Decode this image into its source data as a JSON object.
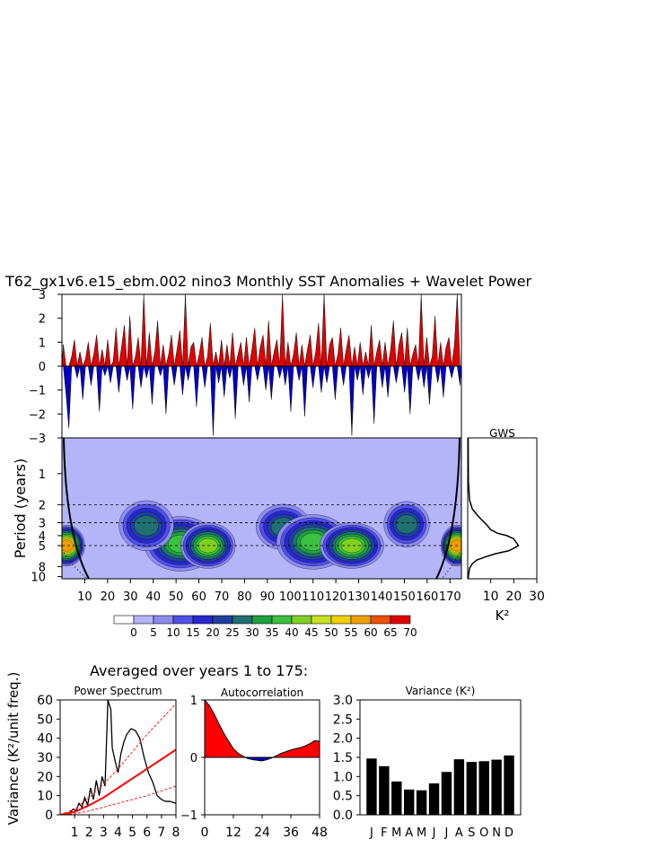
{
  "title": "T62_gx1v6.e15_ebm.002 nino3 Monthly SST Anomalies + Wavelet Power",
  "colors": {
    "positive": "#e00000",
    "negative": "#0000c8",
    "wavelet_levels": [
      "#ffffff",
      "#b4b4f8",
      "#8c8cf0",
      "#5050e6",
      "#2828d0",
      "#2040a0",
      "#207070",
      "#20a040",
      "#3cc040",
      "#80d020",
      "#c8e020",
      "#f0d000",
      "#f0a000",
      "#f05000",
      "#e00000"
    ],
    "red": "#ff0000"
  },
  "chart_data": [
    {
      "id": "timeseries",
      "type": "bar",
      "title": "",
      "xlabel": "",
      "ylabel": "",
      "ylim": [
        -3,
        3
      ],
      "yticks": [
        "3",
        "2",
        "1",
        "0",
        "−1",
        "−2",
        "−3"
      ],
      "ytick_values": [
        3,
        2,
        1,
        0,
        -1,
        -2,
        -3
      ],
      "xlim": [
        0,
        175
      ],
      "grid": false,
      "series": [
        {
          "values": [
            0.9,
            -1.2,
            -2.6,
            0.4,
            1.1,
            -0.5,
            0.6,
            -1.4,
            0.3,
            1.0,
            -0.8,
            0.5,
            1.3,
            -1.9,
            0.7,
            -0.4,
            1.1,
            -0.7,
            0.2,
            1.6,
            -1.1,
            0.8,
            1.7,
            -0.6,
            2.1,
            -1.8,
            0.4,
            1.2,
            -0.9,
            3.0,
            -0.5,
            1.4,
            -1.6,
            0.6,
            1.9,
            -0.4,
            0.9,
            -2.0,
            0.5,
            1.3,
            -0.8,
            0.7,
            1.5,
            -1.2,
            3.0,
            -0.6,
            0.8,
            1.0,
            -1.7,
            0.5,
            1.2,
            -0.9,
            0.4,
            1.8,
            -2.9,
            0.6,
            -0.7,
            1.1,
            -1.3,
            0.9,
            -0.5,
            1.4,
            -2.2,
            0.5,
            1.0,
            -0.8,
            1.2,
            -1.5,
            0.7,
            1.6,
            -0.6,
            0.8,
            1.3,
            -1.0,
            1.9,
            -1.4,
            0.6,
            1.1,
            -0.5,
            3.0,
            -0.8,
            1.0,
            -1.9,
            0.5,
            1.4,
            -0.6,
            0.9,
            -2.1,
            0.7,
            1.3,
            -0.9,
            0.6,
            1.8,
            -1.1,
            3.0,
            -0.7,
            0.9,
            1.2,
            -1.4,
            0.5,
            1.6,
            -0.8,
            0.7,
            1.3,
            -2.9,
            0.8,
            -0.6,
            1.0,
            -1.2,
            0.6,
            -0.5,
            1.7,
            -2.4,
            0.6,
            1.1,
            -0.9,
            1.0,
            -1.3,
            0.7,
            1.9,
            -0.7,
            0.9,
            1.4,
            -1.1,
            1.6,
            -2.0,
            0.5,
            0.9,
            -0.6,
            3.0,
            -0.9,
            1.2,
            -1.6,
            0.4,
            2.1,
            -0.7,
            1.0,
            -1.3,
            0.8,
            1.2,
            -0.5,
            0.9,
            3.0,
            -0.8
          ],
          "name": ""
        }
      ]
    },
    {
      "id": "wavelet",
      "type": "heatmap",
      "xlabel": "",
      "ylabel": "Period (years)",
      "xticks": [
        "10",
        "20",
        "30",
        "40",
        "50",
        "60",
        "70",
        "80",
        "90",
        "100",
        "110",
        "120",
        "130",
        "140",
        "150",
        "160",
        "170"
      ],
      "xtick_values": [
        10,
        20,
        30,
        40,
        50,
        60,
        70,
        80,
        90,
        100,
        110,
        120,
        130,
        140,
        150,
        160,
        170
      ],
      "yticks": [
        "1",
        "2",
        "3",
        "4",
        "5",
        "8",
        "10"
      ],
      "ytick_values": [
        1,
        2,
        3,
        4,
        5,
        8,
        10
      ],
      "dashed_periods": [
        2,
        3,
        5
      ],
      "xlim": [
        0,
        175
      ],
      "ylim": [
        0.45,
        10.5
      ],
      "log_y": true,
      "colorbar_labels": [
        "0",
        "5",
        "10",
        "15",
        "20",
        "25",
        "30",
        "35",
        "40",
        "45",
        "50",
        "55",
        "60",
        "65",
        "70"
      ],
      "blobs": [
        {
          "x": 52,
          "p": 4.8,
          "level": 8,
          "wx": 14,
          "wp": 0.55
        },
        {
          "x": 64,
          "p": 5.0,
          "level": 9,
          "wx": 10,
          "wp": 0.45
        },
        {
          "x": 37,
          "p": 3.2,
          "level": 6,
          "wx": 10,
          "wp": 0.5
        },
        {
          "x": 97,
          "p": 3.3,
          "level": 6,
          "wx": 10,
          "wp": 0.45
        },
        {
          "x": 110,
          "p": 4.6,
          "level": 8,
          "wx": 14,
          "wp": 0.55
        },
        {
          "x": 127,
          "p": 5.0,
          "level": 9,
          "wx": 12,
          "wp": 0.45
        },
        {
          "x": 151,
          "p": 3.1,
          "level": 6,
          "wx": 8,
          "wp": 0.45
        },
        {
          "x": 2,
          "p": 5.0,
          "level": 12,
          "wx": 6,
          "wp": 0.4
        },
        {
          "x": 173,
          "p": 5.0,
          "level": 12,
          "wx": 5,
          "wp": 0.4
        }
      ]
    },
    {
      "id": "gws",
      "type": "line",
      "title": "GWS",
      "xlabel": "K²",
      "ylabel": "",
      "xticks": [
        "10",
        "20",
        "30"
      ],
      "xtick_values": [
        10,
        20,
        30
      ],
      "xlim": [
        0,
        30
      ],
      "series": [
        {
          "x": [
            0.2,
            0.3,
            0.8,
            2,
            4,
            6,
            8,
            10,
            13,
            17,
            20,
            22,
            18,
            12,
            8,
            4,
            2,
            0.8,
            0.4,
            0.2
          ],
          "period": [
            0.45,
            1.2,
            1.8,
            2.2,
            2.5,
            2.8,
            3.1,
            3.5,
            3.8,
            4.0,
            4.3,
            5.0,
            5.6,
            6.0,
            6.4,
            6.9,
            7.5,
            8.3,
            9.5,
            10.5
          ],
          "name": ""
        }
      ]
    },
    {
      "id": "power_spectrum",
      "type": "line",
      "title": "Power Spectrum",
      "xlabel": "",
      "ylabel": "Variance (K²/unit freq.)",
      "xticks": [
        "1",
        "2",
        "3",
        "4",
        "5",
        "6",
        "7",
        "8"
      ],
      "xtick_values": [
        1,
        2,
        3,
        4,
        5,
        6,
        7,
        8
      ],
      "yticks": [
        "0",
        "10",
        "20",
        "30",
        "40",
        "50",
        "60"
      ],
      "ytick_values": [
        0,
        10,
        20,
        30,
        40,
        50,
        60
      ],
      "xlim": [
        0,
        8
      ],
      "ylim": [
        0,
        60
      ],
      "series": [
        {
          "name": "",
          "x": [
            0.1,
            0.4,
            0.6,
            0.9,
            1.1,
            1.3,
            1.5,
            1.7,
            1.9,
            2.1,
            2.3,
            2.5,
            2.7,
            2.9,
            3.1,
            3.3,
            3.5,
            3.6,
            3.8,
            4.0,
            4.2,
            4.4,
            4.6,
            4.9,
            5.2,
            5.5,
            5.8,
            6.1,
            6.4,
            6.7,
            7.0,
            7.3,
            7.6,
            8.0
          ],
          "y": [
            0,
            1,
            0.5,
            3,
            2,
            6,
            4,
            9,
            5,
            14,
            8,
            18,
            10,
            20,
            15,
            60,
            55,
            35,
            28,
            22,
            32,
            38,
            42,
            45,
            44,
            40,
            30,
            22,
            17,
            10,
            8,
            7,
            7,
            6
          ]
        },
        {
          "name": "",
          "x": [
            0,
            1,
            2,
            3,
            4,
            5,
            6,
            7,
            8
          ],
          "y": [
            0,
            1.5,
            5,
            9,
            14,
            19,
            24,
            29,
            34
          ]
        },
        {
          "name": "",
          "x": [
            0,
            1,
            2,
            3,
            4,
            5,
            6,
            7,
            8
          ],
          "y": [
            0,
            3,
            9,
            16,
            24,
            33,
            42,
            50,
            58
          ]
        },
        {
          "name": "",
          "x": [
            0,
            1,
            2,
            3,
            4,
            5,
            6,
            7,
            8
          ],
          "y": [
            0,
            0.5,
            2,
            4,
            6,
            8,
            10,
            12.5,
            15
          ]
        }
      ]
    },
    {
      "id": "autocorrelation",
      "type": "area",
      "title": "Autocorrelation",
      "xlabel": "",
      "xticks": [
        "0",
        "12",
        "24",
        "36",
        "48"
      ],
      "xtick_values": [
        0,
        12,
        24,
        36,
        48
      ],
      "yticks": [
        "1",
        "0",
        "−1"
      ],
      "ytick_values": [
        1,
        0,
        -1
      ],
      "xlim": [
        0,
        48
      ],
      "ylim": [
        -1,
        1
      ],
      "series": [
        {
          "name": "",
          "x": [
            0,
            2,
            4,
            6,
            8,
            10,
            12,
            14,
            16,
            18,
            20,
            22,
            24,
            26,
            28,
            30,
            32,
            34,
            36,
            38,
            40,
            42,
            44,
            46,
            48
          ],
          "y": [
            1,
            0.9,
            0.75,
            0.58,
            0.42,
            0.28,
            0.15,
            0.07,
            0.02,
            -0.02,
            -0.04,
            -0.05,
            -0.06,
            -0.04,
            -0.01,
            0.03,
            0.07,
            0.1,
            0.13,
            0.15,
            0.17,
            0.2,
            0.24,
            0.29,
            0.28
          ]
        }
      ]
    },
    {
      "id": "variance",
      "type": "bar",
      "title": "Variance (K²)",
      "xlabel": "",
      "categories": [
        "J",
        "F",
        "M",
        "A",
        "M",
        "J",
        "J",
        "A",
        "S",
        "O",
        "N",
        "D"
      ],
      "yticks": [
        "0.0",
        "0.5",
        "1.0",
        "1.5",
        "2.0",
        "2.5",
        "3.0"
      ],
      "ytick_values": [
        0,
        0.5,
        1,
        1.5,
        2,
        2.5,
        3
      ],
      "ylim": [
        0,
        3
      ],
      "values": [
        1.47,
        1.27,
        0.87,
        0.66,
        0.64,
        0.82,
        1.12,
        1.45,
        1.38,
        1.4,
        1.44,
        1.55
      ]
    }
  ],
  "averaged_title": "Averaged over years 1 to 175:"
}
